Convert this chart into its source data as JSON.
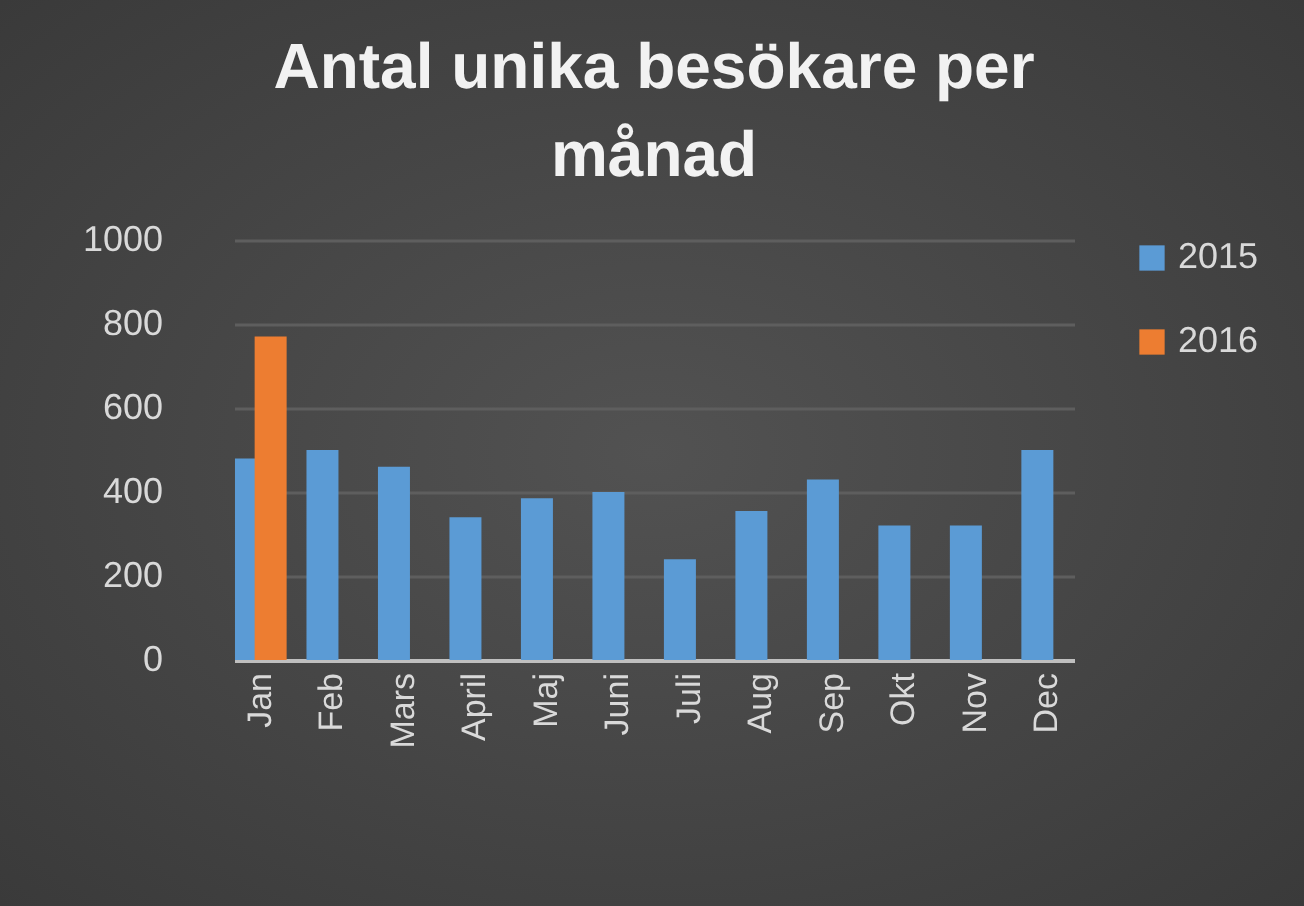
{
  "chart_data": {
    "type": "bar",
    "title": "Antal unika besökare per månad",
    "categories": [
      "Jan",
      "Feb",
      "Mars",
      "April",
      "Maj",
      "Juni",
      "Juli",
      "Aug",
      "Sep",
      "Okt",
      "Nov",
      "Dec"
    ],
    "series": [
      {
        "name": "2015",
        "color": "#5b9bd5",
        "values": [
          480,
          500,
          460,
          340,
          385,
          400,
          240,
          355,
          430,
          320,
          320,
          500
        ]
      },
      {
        "name": "2016",
        "color": "#ed7d31",
        "values": [
          770,
          null,
          null,
          null,
          null,
          null,
          null,
          null,
          null,
          null,
          null,
          null
        ]
      }
    ],
    "ylim": [
      0,
      1000
    ],
    "yticks": [
      0,
      200,
      400,
      600,
      800,
      1000
    ],
    "grid": "y",
    "legend": "right"
  }
}
